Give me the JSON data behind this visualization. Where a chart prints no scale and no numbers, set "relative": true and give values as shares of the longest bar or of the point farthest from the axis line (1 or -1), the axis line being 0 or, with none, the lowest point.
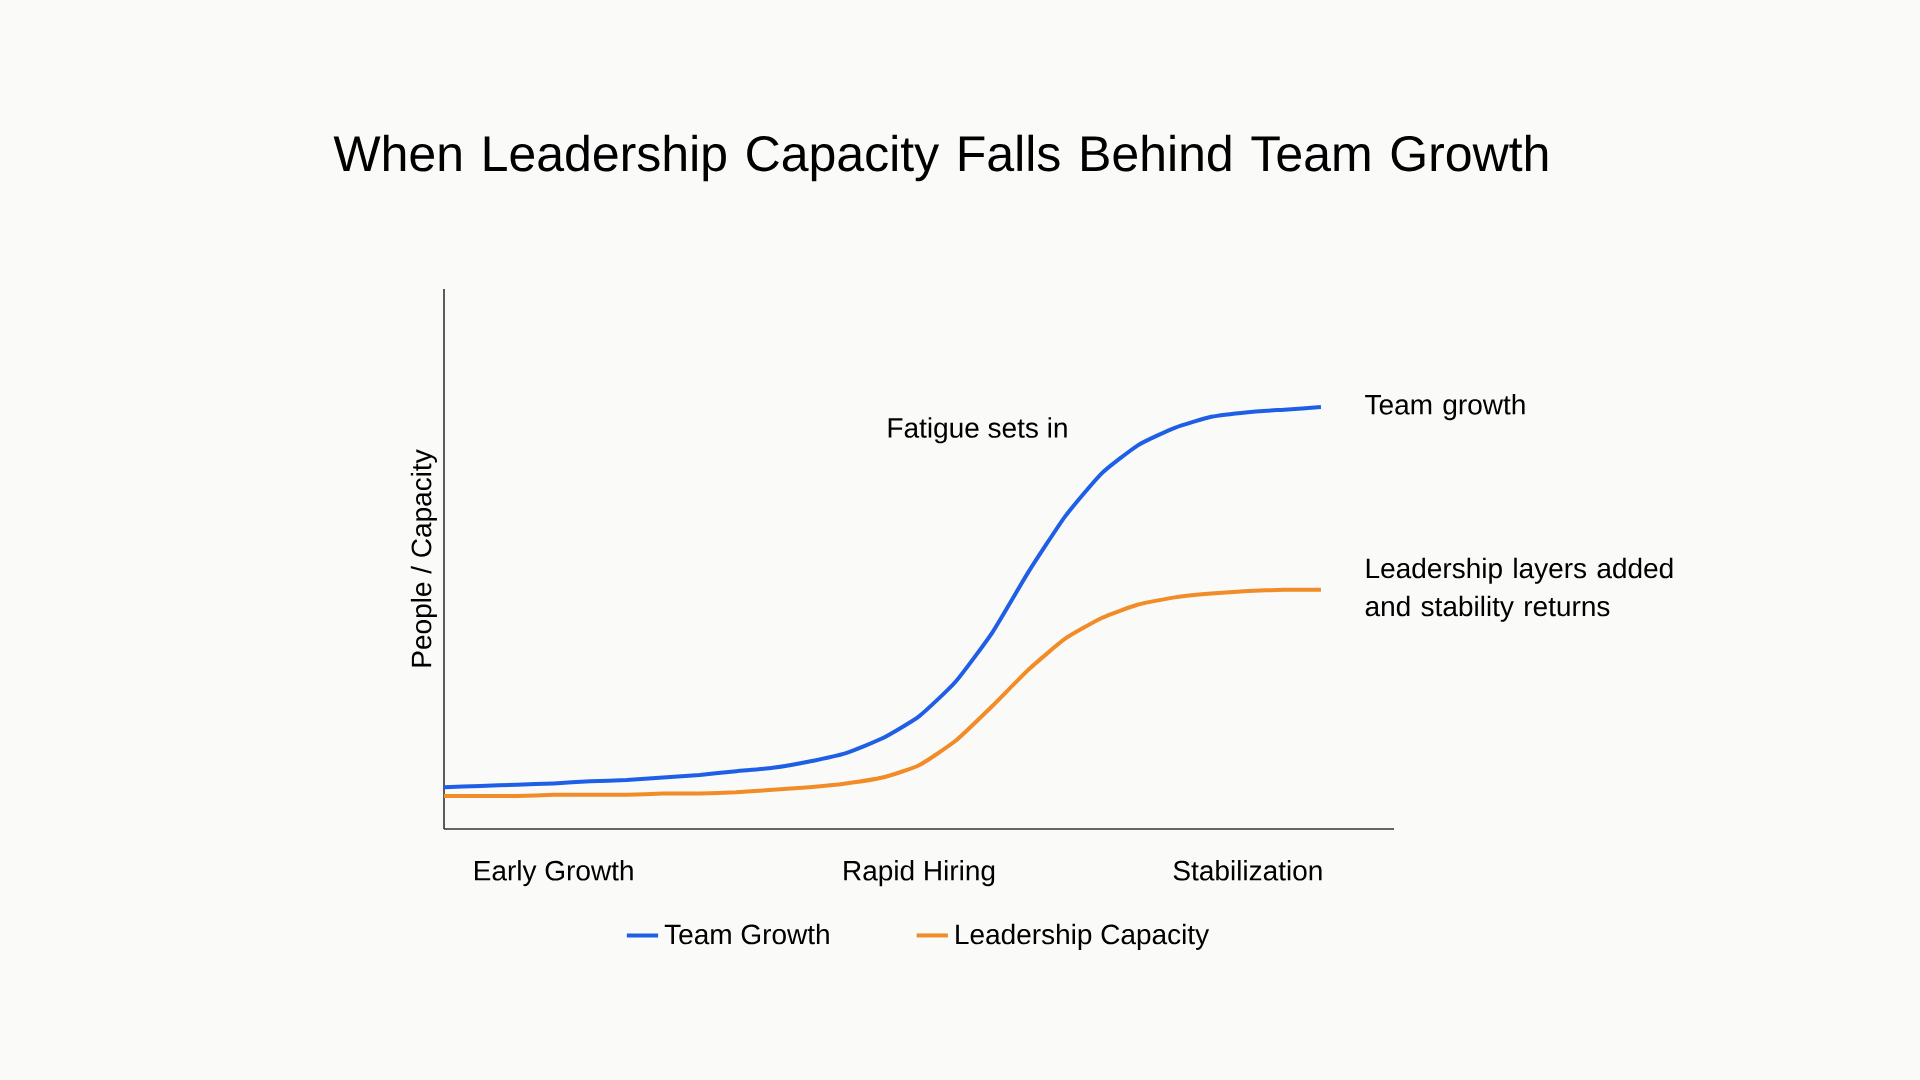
{
  "chart_data": {
    "type": "line",
    "title": "When Leadership Capacity Falls Behind Team Growth",
    "ylabel": "People / Capacity",
    "relative": true,
    "legend": "bottom",
    "marker": "none",
    "line_style": "solid",
    "categories": [
      null,
      null,
      null,
      "Early Growth",
      null,
      null,
      null,
      null,
      null,
      null,
      null,
      null,
      null,
      "Rapid Hiring",
      null,
      null,
      null,
      null,
      null,
      null,
      null,
      null,
      "Stabilization",
      null,
      null
    ],
    "series": [
      {
        "name": "Team Growth",
        "color": "#1f5fe6",
        "values": [
          0.099,
          0.102,
          0.105,
          0.108,
          0.113,
          0.116,
          0.122,
          0.128,
          0.137,
          0.145,
          0.16,
          0.18,
          0.215,
          0.267,
          0.349,
          0.465,
          0.61,
          0.741,
          0.843,
          0.91,
          0.951,
          0.977,
          0.988,
          0.994,
          1.0
        ]
      },
      {
        "name": "Leadership Capacity",
        "color": "#f28c28",
        "values": [
          0.078,
          0.078,
          0.078,
          0.081,
          0.081,
          0.081,
          0.084,
          0.084,
          0.087,
          0.093,
          0.099,
          0.108,
          0.122,
          0.151,
          0.209,
          0.291,
          0.378,
          0.451,
          0.5,
          0.532,
          0.549,
          0.558,
          0.564,
          0.567,
          0.567
        ]
      }
    ],
    "annotations": [
      "Fatigue sets in",
      "Team growth",
      "Leadership layers added and stability returns"
    ]
  }
}
